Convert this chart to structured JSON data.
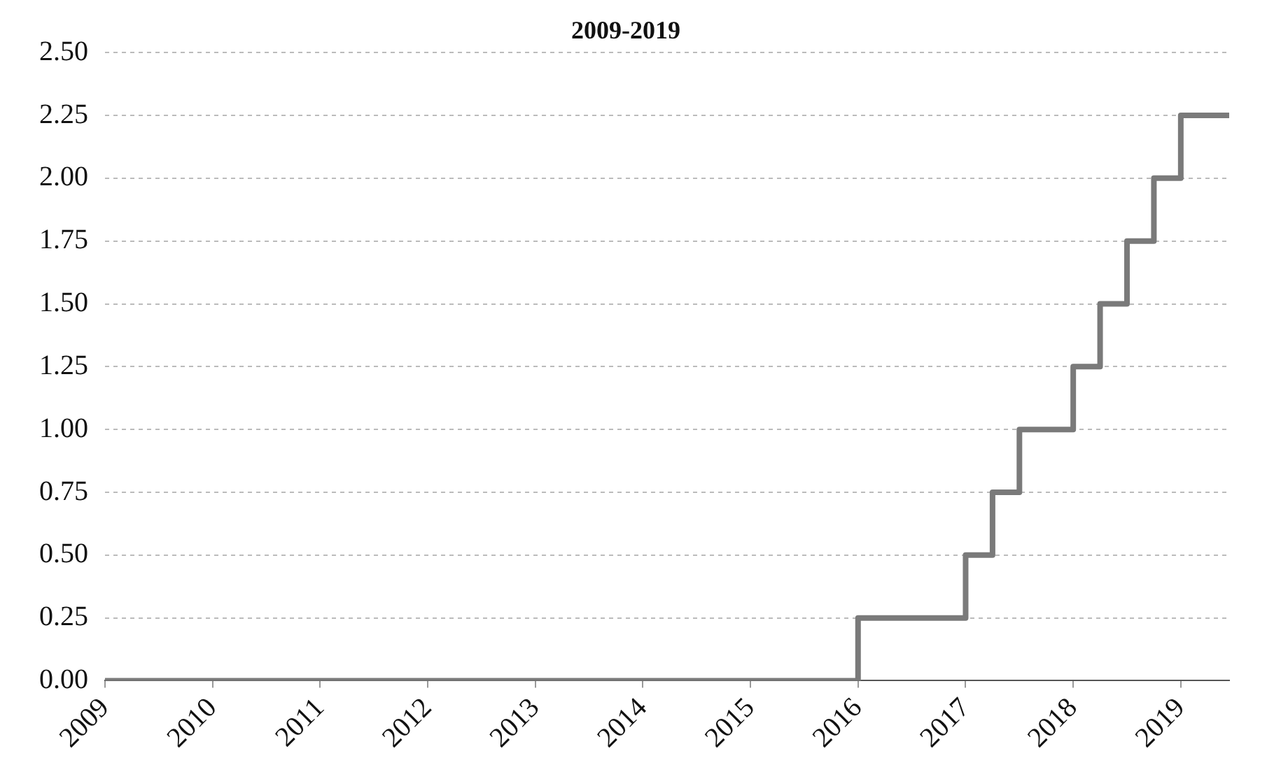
{
  "chart_data": {
    "type": "step",
    "title": "2009-2019",
    "x": [
      2009,
      2016.0,
      2017.0,
      2017.25,
      2017.5,
      2018.0,
      2018.25,
      2018.5,
      2018.75,
      2019.0,
      2019.45
    ],
    "series": [
      {
        "color": "#7a7a7a",
        "values": [
          0,
          0.25,
          0.5,
          0.75,
          1.0,
          1.25,
          1.5,
          1.75,
          2.0,
          2.25,
          2.25
        ]
      }
    ],
    "xlim": [
      2009,
      2019.45
    ],
    "xticks": [
      2009,
      2010,
      2011,
      2012,
      2013,
      2014,
      2015,
      2016,
      2017,
      2018,
      2019
    ],
    "ylim": [
      0,
      2.5
    ],
    "yticks": [
      {
        "value": 0,
        "label": "0.00"
      },
      {
        "value": 0.25,
        "label": "0.25"
      },
      {
        "value": 0.5,
        "label": "0.50"
      },
      {
        "value": 0.75,
        "label": "0.75"
      },
      {
        "value": 1,
        "label": "1.00"
      },
      {
        "value": 1.25,
        "label": "1.25"
      },
      {
        "value": 1.5,
        "label": "1.50"
      },
      {
        "value": 1.75,
        "label": "1.75"
      },
      {
        "value": 2,
        "label": "2.00"
      },
      {
        "value": 2.25,
        "label": "2.25"
      },
      {
        "value": 2.5,
        "label": "2.50"
      }
    ],
    "grid": "y",
    "legend": false,
    "marker": "none",
    "line_style": "solid"
  }
}
